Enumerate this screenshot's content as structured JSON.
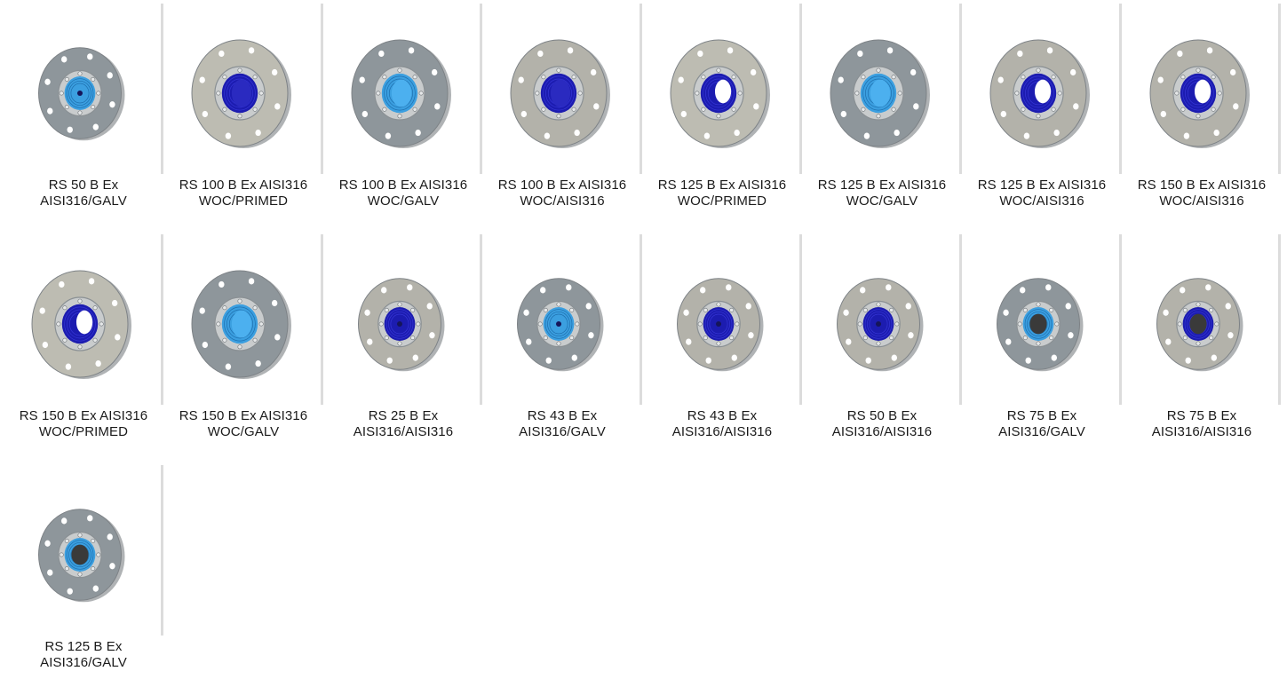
{
  "products": [
    {
      "line1": "RS 50 B Ex",
      "line2": "AISI316/GALV",
      "plate": "galv",
      "seal": "cyan",
      "core": "small"
    },
    {
      "line1": "RS 100 B Ex AISI316",
      "line2": "WOC/PRIMED",
      "plate": "primed",
      "seal": "navy",
      "core": "none"
    },
    {
      "line1": "RS 100 B Ex AISI316",
      "line2": "WOC/GALV",
      "plate": "galv",
      "seal": "cyan",
      "core": "none"
    },
    {
      "line1": "RS 100 B Ex AISI316",
      "line2": "WOC/AISI316",
      "plate": "steel",
      "seal": "navy",
      "core": "none"
    },
    {
      "line1": "RS 125 B Ex AISI316",
      "line2": "WOC/PRIMED",
      "plate": "primed",
      "seal": "navy",
      "core": "hole"
    },
    {
      "line1": "RS 125 B Ex AISI316",
      "line2": "WOC/GALV",
      "plate": "galv",
      "seal": "cyan",
      "core": "none"
    },
    {
      "line1": "RS 125 B Ex AISI316",
      "line2": "WOC/AISI316",
      "plate": "steel",
      "seal": "navy",
      "core": "hole"
    },
    {
      "line1": "RS 150 B Ex AISI316",
      "line2": "WOC/AISI316",
      "plate": "steel",
      "seal": "navy",
      "core": "hole"
    },
    {
      "line1": "RS 150 B Ex AISI316",
      "line2": "WOC/PRIMED",
      "plate": "primed",
      "seal": "navy",
      "core": "hole"
    },
    {
      "line1": "RS 150 B Ex AISI316",
      "line2": "WOC/GALV",
      "plate": "galv",
      "seal": "cyan",
      "core": "none"
    },
    {
      "line1": "RS 25 B Ex",
      "line2": "AISI316/AISI316",
      "plate": "steel",
      "seal": "navy",
      "core": "small"
    },
    {
      "line1": "RS 43 B Ex",
      "line2": "AISI316/GALV",
      "plate": "galv",
      "seal": "cyan",
      "core": "small"
    },
    {
      "line1": "RS 43 B Ex",
      "line2": "AISI316/AISI316",
      "plate": "steel",
      "seal": "navy",
      "core": "small"
    },
    {
      "line1": "RS 50 B Ex",
      "line2": "AISI316/AISI316",
      "plate": "steel",
      "seal": "navy",
      "core": "small"
    },
    {
      "line1": "RS 75 B Ex",
      "line2": "AISI316/GALV",
      "plate": "galv",
      "seal": "cyan",
      "core": "dark"
    },
    {
      "line1": "RS 75 B Ex",
      "line2": "AISI316/AISI316",
      "plate": "steel",
      "seal": "navy",
      "core": "dark"
    },
    {
      "line1": "RS 125 B Ex",
      "line2": "AISI316/GALV",
      "plate": "galv",
      "seal": "cyan",
      "core": "dark"
    }
  ],
  "colors": {
    "galv": "#8e969b",
    "primed": "#bdbcb2",
    "steel": "#b3b2aa",
    "navy": "#1c1cb0",
    "cyan": "#3b9fe0",
    "divider": "#dcdcdc"
  }
}
